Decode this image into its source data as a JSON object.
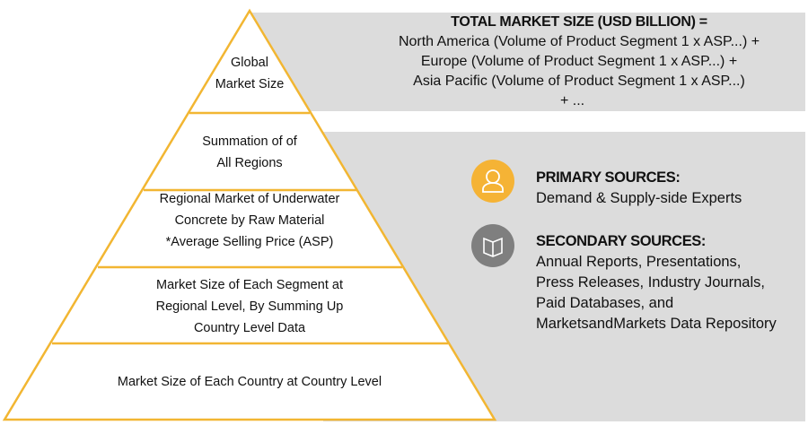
{
  "pyramid": {
    "levels": [
      "Global Market Size",
      "Summation of of All Regions",
      "Regional Market of Underwater Concrete by Raw Material *Average Selling Price (ASP)",
      "Market Size of Each Segment at Regional Level, By Summing Up Country Level Data",
      "Market Size of Each Country at Country Level"
    ]
  },
  "formula": {
    "title": "TOTAL MARKET SIZE (USD BILLION) =",
    "lines": [
      "North America (Volume of Product Segment 1 x ASP...) +",
      "Europe (Volume of Product Segment 1 x ASP...) +",
      "Asia Pacific (Volume of Product Segment 1 x ASP...)",
      "+ ..."
    ]
  },
  "primary": {
    "title": "PRIMARY SOURCES:",
    "text": "Demand & Supply-side Experts",
    "icon": "person-icon",
    "color": "#f5b335"
  },
  "secondary": {
    "title": "SECONDARY SOURCES:",
    "text": "Annual Reports, Presentations, Press Releases, Industry Journals, Paid Databases, and MarketsandMarkets Data Repository",
    "icon": "book-icon",
    "color": "#7f7f7f"
  },
  "colors": {
    "outline": "#f2b632",
    "panel": "#dcdcdc"
  }
}
